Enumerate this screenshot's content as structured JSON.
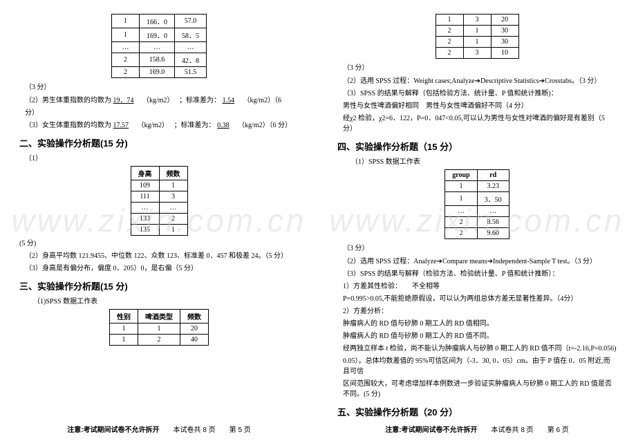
{
  "watermark": "www.zixin.com.cn",
  "page5": {
    "table1": {
      "columns": 3,
      "rows": [
        [
          "1",
          "166．0",
          "57.0"
        ],
        [
          "1",
          "169．0",
          "58．5"
        ],
        [
          "…",
          "…",
          "…"
        ],
        [
          "2",
          "158.6",
          "42．8"
        ],
        [
          "2",
          "169.0",
          "51.5"
        ]
      ]
    },
    "score1": "（3 分）",
    "line2a": "（2）男生体重指数的均数为",
    "line2b": "19．74",
    "line2c": "（kg/m2）",
    "line2d": "；标准差为：",
    "line2e": "1.54",
    "line2f": "（kg/m2）（6",
    "line2g": "分）",
    "line3a": "（3）女生体重指数的均数为",
    "line3b": "17.57",
    "line3c": "（kg/m2）",
    "line3d": "；标准差为：",
    "line3e": "0.38",
    "line3f": "（kg/m2）（6 分）",
    "heading2": "二、实验操作分析题(15 分)",
    "item1": "（1）",
    "table2": {
      "head": [
        "身高",
        "频数"
      ],
      "rows": [
        [
          "109",
          "1"
        ],
        [
          "111",
          "3"
        ],
        [
          "…",
          "…"
        ],
        [
          "133",
          "2"
        ],
        [
          "135",
          "1"
        ]
      ]
    },
    "score5": "(5 分)",
    "line5": "（2）身高平均数 121.9455、中位数 122、众数 123、标准差 0．457 和极差 24。（5 分）",
    "line6": "（3）身高是有偏分布，偏度 0．205）0，是右偏（5 分）",
    "heading3": "三、实验操作分析题(15 分)",
    "item3_1": "（1)SPSS 数据工作表",
    "table3": {
      "head": [
        "性别",
        "啤酒类型",
        "频数"
      ],
      "rows": [
        [
          "1",
          "1",
          "20"
        ],
        [
          "1",
          "2",
          "40"
        ]
      ]
    },
    "footer": {
      "bold": "注意:考试期间试卷不允许拆开",
      "rest": "　　本试卷共 8 页　　第 5 页"
    }
  },
  "page6": {
    "table1": {
      "columns": 3,
      "rows": [
        [
          "1",
          "3",
          "20"
        ],
        [
          "2",
          "1",
          "30"
        ],
        [
          "2",
          "1",
          "30"
        ],
        [
          "2",
          "3",
          "10"
        ]
      ]
    },
    "score1": "（3 分）",
    "line2": "（2）选用 SPSS 过程：Weight cases;Analyze➔Descriptive Statistics➔Crosstabs。（3 分）",
    "line3": "（3）SPSS 的结果与解释（包括检验方法、统计量、P 值和统计推断)：",
    "line4": "男性与女性啤酒偏好相同　男性与女性啤酒偏好不同（4 分）",
    "line5": "经χ2 检验，χ2=6．122，P=0．047<0.05,可以认为男性与女性对啤酒的偏好是有差别（5 分）",
    "heading4": "四、实验操作分析题（15 分）",
    "item4_1": "（1）SPSS 数据工作表",
    "table2": {
      "head": [
        "group",
        "rd"
      ],
      "rows": [
        [
          "1",
          "3.23"
        ],
        [
          "1",
          "3．50"
        ],
        [
          "…",
          "…"
        ],
        [
          "2",
          "8.56"
        ],
        [
          "2",
          "9.60"
        ]
      ]
    },
    "score3": "（3 分）",
    "line_4_2": "（2）选用 SPSS 过程：Analyze➔Compare means➔Independent-Sample T test。（3 分）",
    "line_4_3": "（3）SPSS 的结果与解释（检验方法、检验统计量、P 值和统计推断）：",
    "line_4_3a": "1）方差其性检验：　　不全相等",
    "line_4_3b": "P=0.995>0.05,不能拒绝原假设，可以认为两组总体方差无显著性差异。（4分）",
    "line_4_3c": "2）方差分析：",
    "line_4_3d": "肿瘤病人的 RD 值与矽肺 0 期工人的 RD 值相同。",
    "line_4_3e": "肿瘤病人的 RD 值与矽肺 0 期工人的 RD 值不同。",
    "line_4_3f": "经两独立样本 t 检验，尚不能认为肿瘤病人与矽肺 0 期工人的 RD 值不同（t=-2.16,P=0.056)",
    "line_4_3g": "0.05）。总体均数差值的 95%可信区间为（-3．30, 0．05）cm。由于 P 值在 0．05 附近,而且可信",
    "line_4_3h": "区间范围较大，可考虑增加样本例数进一步验证实肿瘤病人与矽肺 0 期工人的 RD 值是否不同。(5 分)",
    "heading5": "五、实验操作分析题（20 分）",
    "footer": {
      "bold": "注意:考试期间试卷不允许拆开",
      "rest": "　　本试卷共 8 页　　第 6 页"
    }
  }
}
